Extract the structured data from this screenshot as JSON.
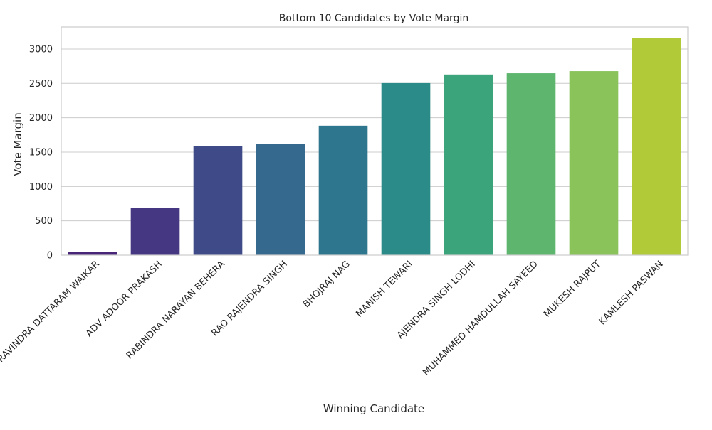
{
  "chart_data": {
    "type": "bar",
    "title": "Bottom 10 Candidates by Vote Margin",
    "xlabel": "Winning Candidate",
    "ylabel": "Vote Margin",
    "categories": [
      "RAVINDRA DATTARAM WAIKAR",
      "ADV ADOOR PRAKASH",
      "RABINDRA NARAYAN BEHERA",
      "RAO RAJENDRA SINGH",
      "BHOJRAJ NAG",
      "MANISH TEWARI",
      "AJENDRA SINGH LODHI",
      "MUHAMMED HAMDULLAH SAYEED",
      "MUKESH RAJPUT",
      "KAMLESH PASWAN"
    ],
    "values": [
      48,
      684,
      1587,
      1615,
      1884,
      2504,
      2629,
      2647,
      2678,
      3157
    ],
    "colors": [
      "#482576",
      "#453781",
      "#3f4b89",
      "#35698e",
      "#2e768e",
      "#2b8b88",
      "#3ca47b",
      "#5db56e",
      "#89c35a",
      "#b0ca38"
    ],
    "ylim": [
      0,
      3320
    ],
    "yticks": [
      0,
      500,
      1000,
      1500,
      2000,
      2500,
      3000
    ],
    "grid": true,
    "grid_axis": "y",
    "xtick_rotation_deg": 45
  }
}
